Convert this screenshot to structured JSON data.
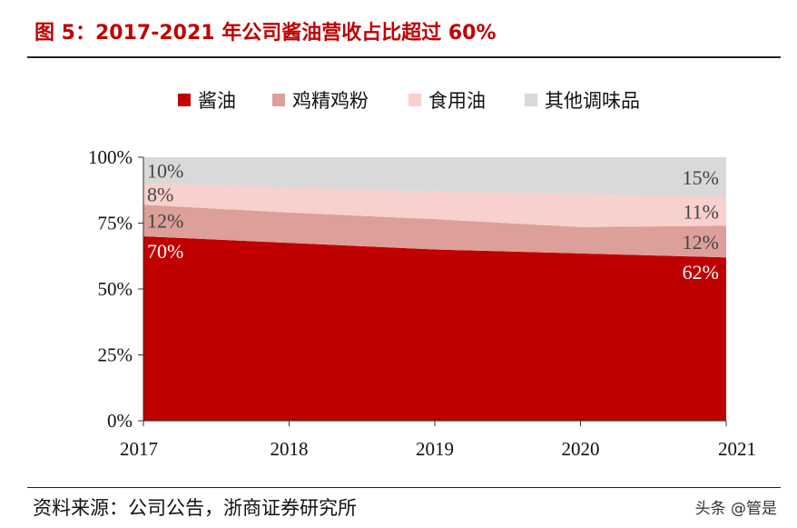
{
  "title": "图 5：2017-2021 年公司酱油营收占比超过 60%",
  "source": "资料来源：公司公告，浙商证券研究所",
  "watermark": "头条 @管是",
  "chart_data": {
    "type": "area",
    "stacked": true,
    "categories": [
      "2017",
      "2018",
      "2019",
      "2020",
      "2021"
    ],
    "ylim": [
      0,
      100
    ],
    "yticks": [
      "0%",
      "25%",
      "50%",
      "75%",
      "100%"
    ],
    "legend_position": "top",
    "series": [
      {
        "name": "酱油",
        "color": "#c00000",
        "values": [
          70,
          67.5,
          65,
          63.5,
          62
        ],
        "labels": [
          "70%",
          null,
          null,
          null,
          "62%"
        ]
      },
      {
        "name": "鸡精鸡粉",
        "color": "#dc9f99",
        "values": [
          12,
          11.5,
          11.5,
          10,
          12
        ],
        "labels": [
          "12%",
          null,
          null,
          null,
          "12%"
        ]
      },
      {
        "name": "食用油",
        "color": "#f8d0cd",
        "values": [
          8,
          9.5,
          10.5,
          12.5,
          11
        ],
        "labels": [
          "8%",
          null,
          null,
          null,
          "11%"
        ]
      },
      {
        "name": "其他调味品",
        "color": "#d9d9d9",
        "values": [
          10,
          11.5,
          13,
          14,
          15
        ],
        "labels": [
          "10%",
          null,
          null,
          null,
          "15%"
        ]
      }
    ]
  }
}
